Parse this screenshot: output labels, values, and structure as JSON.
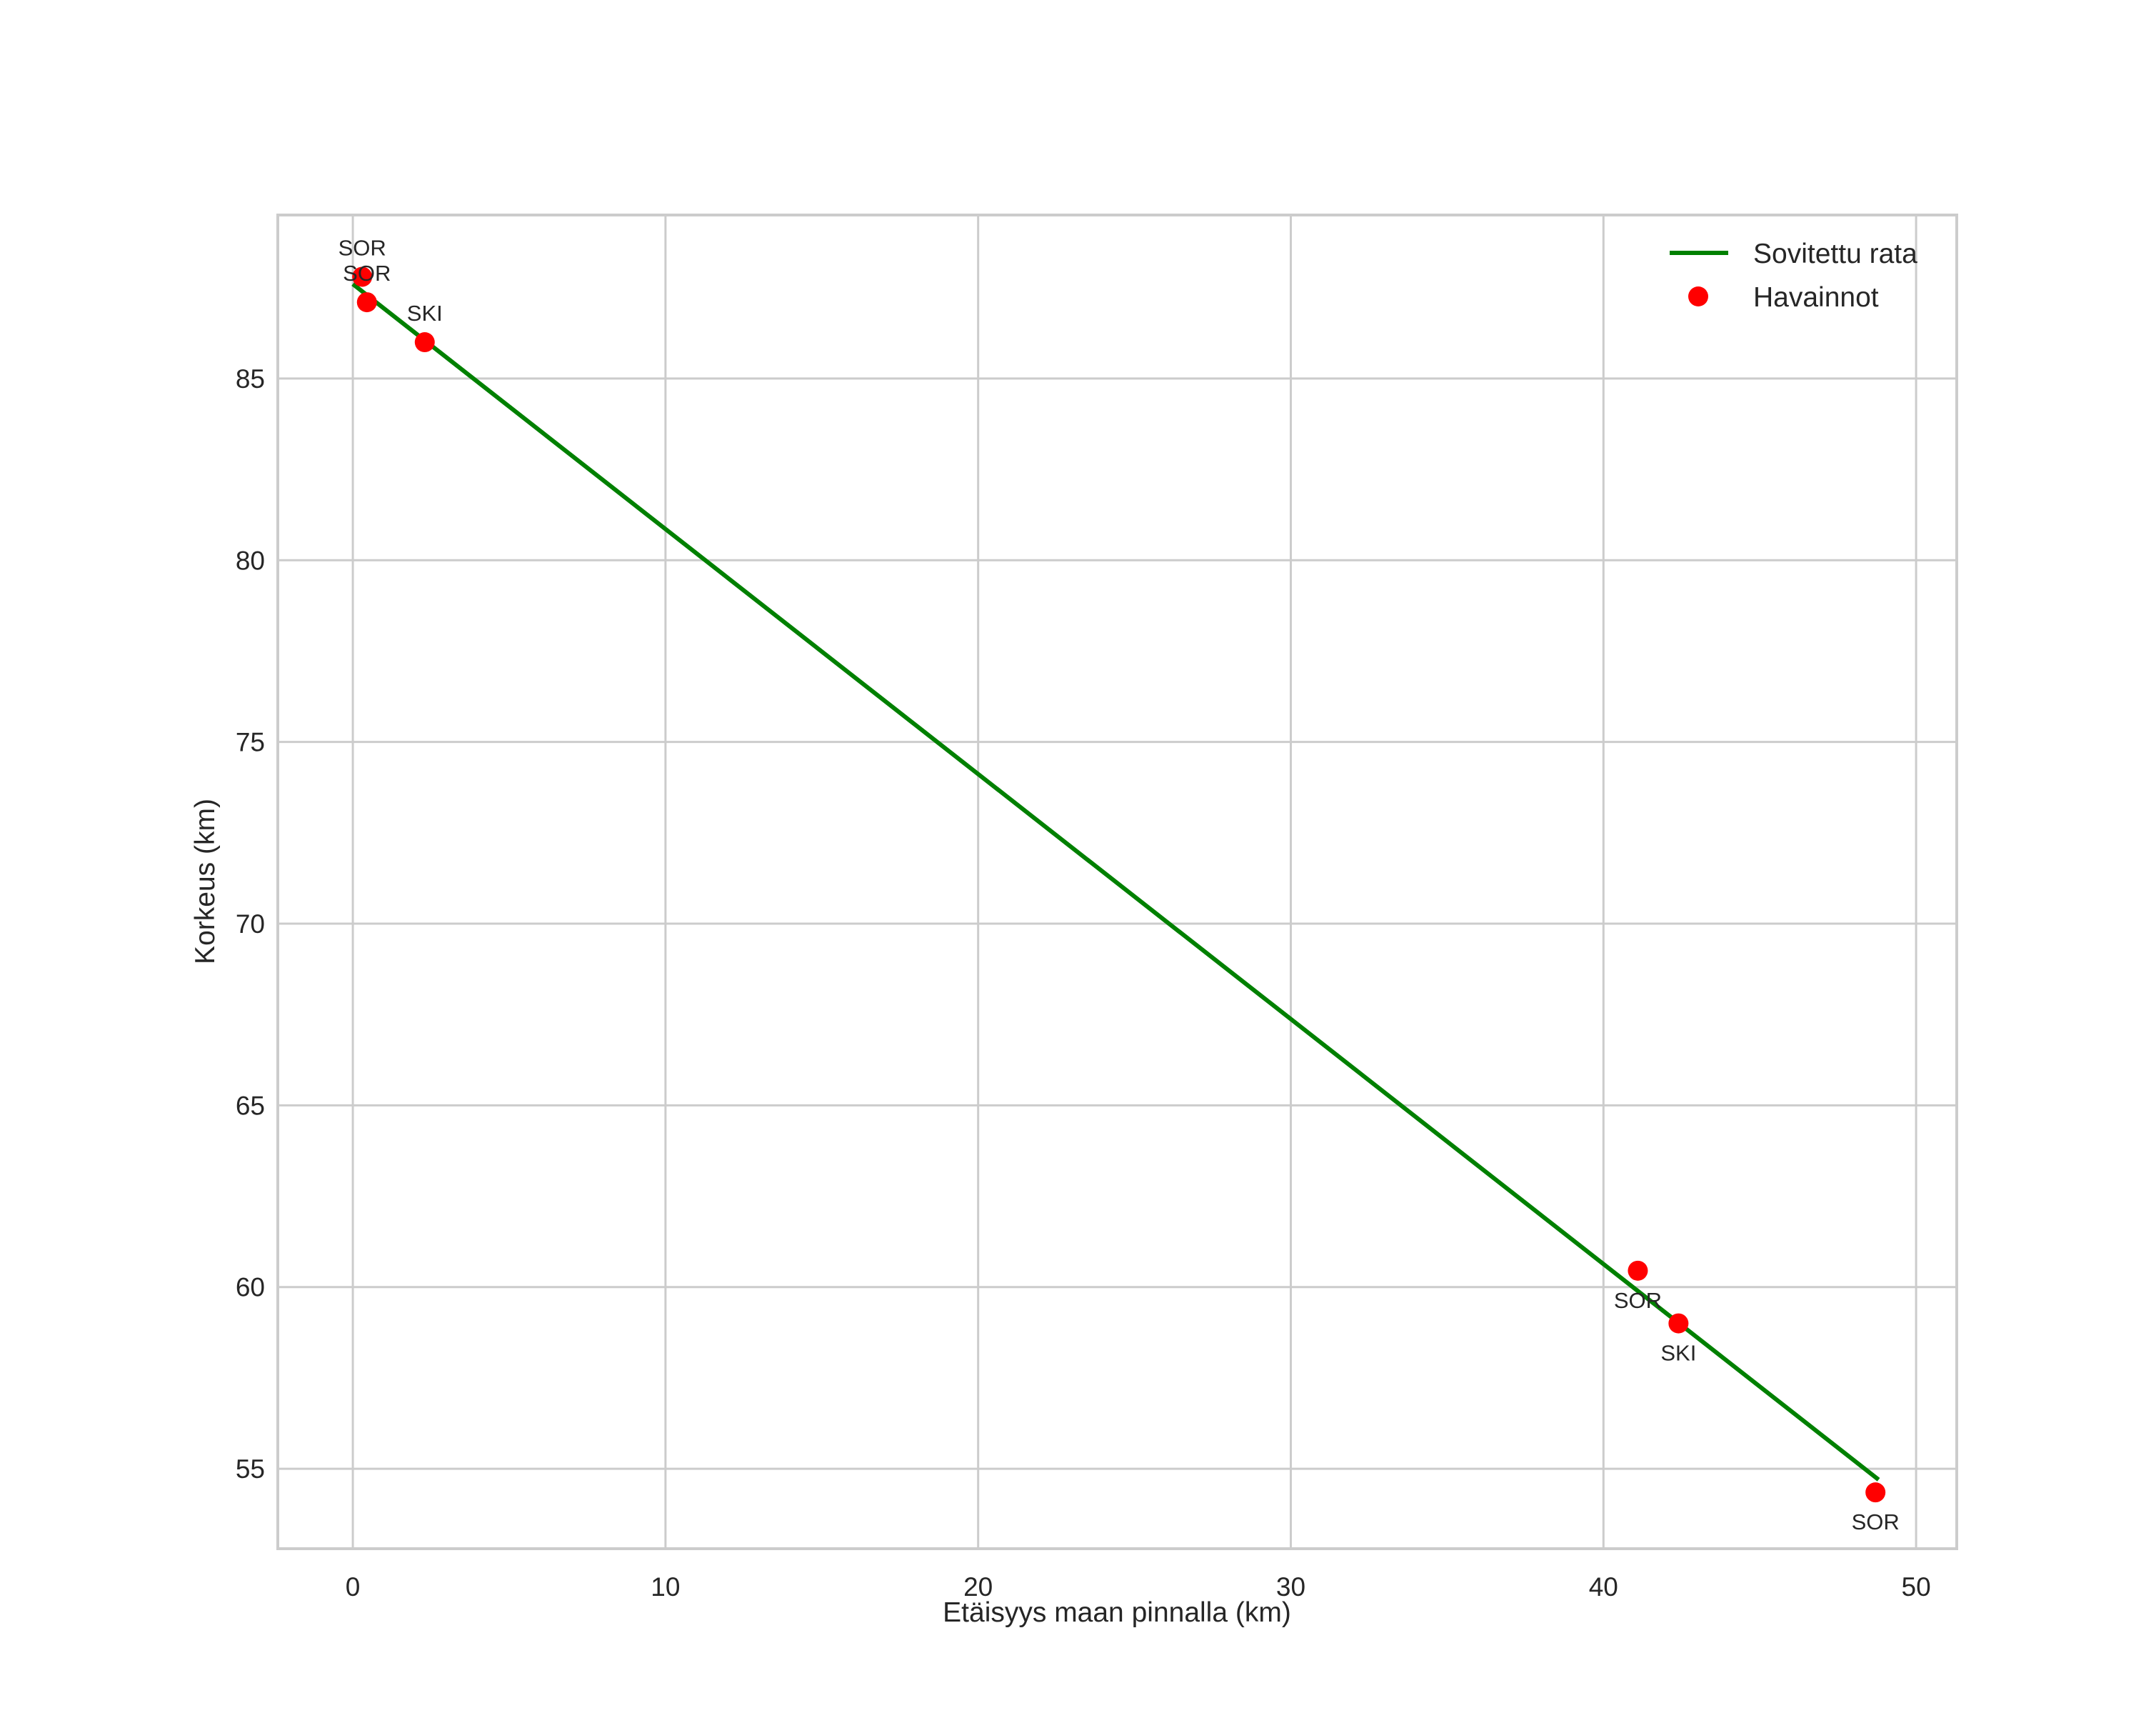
{
  "chart_data": {
    "type": "scatter",
    "title": "",
    "xlabel": "Etäisyys maan pinnalla (km)",
    "ylabel": "Korkeus (km)",
    "xlim": [
      -2.4,
      51.3
    ],
    "ylim": [
      52.8,
      89.5
    ],
    "xticks": [
      0,
      10,
      20,
      30,
      40,
      50
    ],
    "yticks": [
      55,
      60,
      65,
      70,
      75,
      80,
      85
    ],
    "grid": true,
    "legend_position": "upper right",
    "series": [
      {
        "name": "Sovitettu rata",
        "kind": "line",
        "color": "#008000",
        "x": [
          0.0,
          48.8
        ],
        "y": [
          87.6,
          54.7
        ]
      },
      {
        "name": "Havainnot",
        "kind": "scatter",
        "color": "#ff0000",
        "points": [
          {
            "x": 0.3,
            "y": 87.8,
            "label": "SOR",
            "label_pos": "above"
          },
          {
            "x": 0.45,
            "y": 87.1,
            "label": "SOR",
            "label_pos": "above"
          },
          {
            "x": 2.3,
            "y": 86.0,
            "label": "SKI",
            "label_pos": "above"
          },
          {
            "x": 41.1,
            "y": 60.45,
            "label": "SOR",
            "label_pos": "below"
          },
          {
            "x": 42.4,
            "y": 59.0,
            "label": "SKI",
            "label_pos": "below"
          },
          {
            "x": 48.7,
            "y": 54.35,
            "label": "SOR",
            "label_pos": "below"
          }
        ]
      }
    ]
  },
  "legend": {
    "items": [
      {
        "label": "Sovitettu rata",
        "marker": "line",
        "color": "#008000"
      },
      {
        "label": "Havainnot",
        "marker": "dot",
        "color": "#ff0000"
      }
    ]
  },
  "colors": {
    "grid": "#cccccc",
    "spine": "#cccccc",
    "text": "#262626",
    "background": "#ffffff"
  }
}
